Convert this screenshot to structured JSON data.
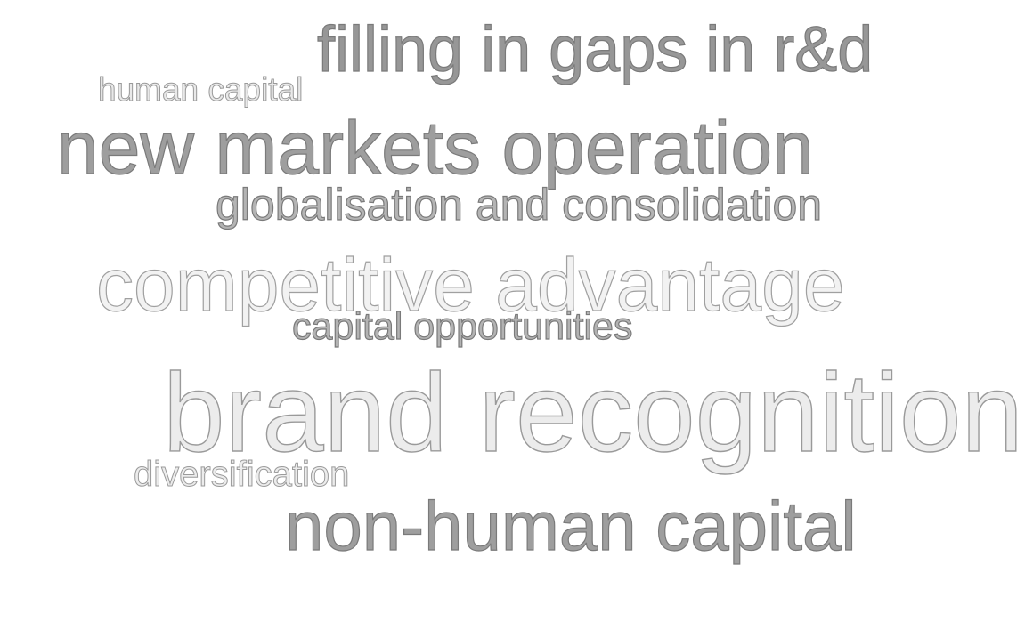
{
  "word_cloud": {
    "words": [
      {
        "text": "filling in gaps in r&d"
      },
      {
        "text": "human capital"
      },
      {
        "text": "new markets operation"
      },
      {
        "text": "globalisation and consolidation"
      },
      {
        "text": "competitive advantage"
      },
      {
        "text": "capital opportunities"
      },
      {
        "text": "brand recognition"
      },
      {
        "text": "diversification"
      },
      {
        "text": "non-human capital"
      }
    ]
  }
}
